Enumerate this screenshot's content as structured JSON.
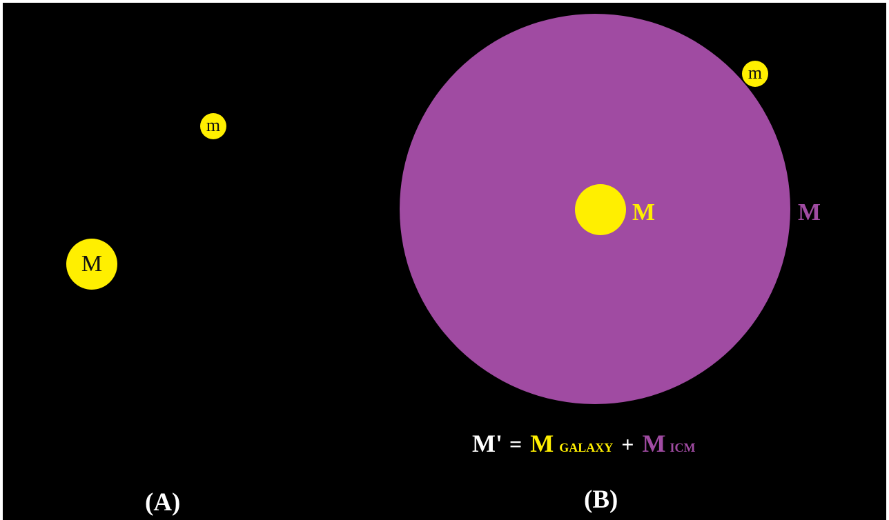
{
  "colors": {
    "background": "#000000",
    "galaxy": "#ffef00",
    "icm": "#a04ba2",
    "text_light": "#ffffff",
    "text_dark": "#111111"
  },
  "panel_a": {
    "small_mass_label": "m",
    "large_mass_label": "M",
    "panel_label": "(A)"
  },
  "panel_b": {
    "small_mass_label": "m",
    "galaxy_mass_label": "M",
    "icm_mass_label": "M",
    "panel_label": "(B)",
    "equation": {
      "lhs": "M'",
      "equals": "=",
      "galaxy_symbol": "M",
      "galaxy_subscript": "GALAXY",
      "plus": "+",
      "icm_symbol": "M",
      "icm_subscript": "ICM"
    }
  }
}
